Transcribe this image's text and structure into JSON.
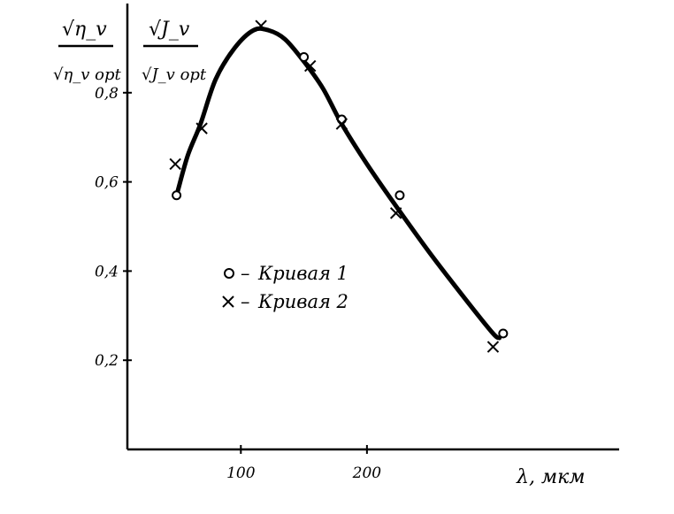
{
  "chart_data": {
    "type": "line",
    "title": "",
    "ylabel_left": {
      "numerator": "√η_v",
      "denominator": "√η_v opt"
    },
    "ylabel_right": {
      "numerator": "√J_v",
      "denominator": "√J_v opt"
    },
    "xlabel": "λ, мкм",
    "xlim": [
      10,
      400
    ],
    "ylim": [
      0.0,
      1.0
    ],
    "x_ticks": [
      {
        "value": 100,
        "label": "100"
      },
      {
        "value": 200,
        "label": "200"
      }
    ],
    "y_ticks": [
      {
        "value": 0.2,
        "label": "0,2"
      },
      {
        "value": 0.4,
        "label": "0,4"
      },
      {
        "value": 0.6,
        "label": "0,6"
      },
      {
        "value": 0.8,
        "label": "0,8"
      }
    ],
    "curve": [
      {
        "x": 50,
        "y": 0.58
      },
      {
        "x": 58,
        "y": 0.66
      },
      {
        "x": 68,
        "y": 0.73
      },
      {
        "x": 80,
        "y": 0.83
      },
      {
        "x": 95,
        "y": 0.9
      },
      {
        "x": 110,
        "y": 0.94
      },
      {
        "x": 122,
        "y": 0.94
      },
      {
        "x": 135,
        "y": 0.92
      },
      {
        "x": 150,
        "y": 0.87
      },
      {
        "x": 165,
        "y": 0.81
      },
      {
        "x": 180,
        "y": 0.73
      },
      {
        "x": 200,
        "y": 0.64
      },
      {
        "x": 222,
        "y": 0.55
      },
      {
        "x": 250,
        "y": 0.44
      },
      {
        "x": 280,
        "y": 0.33
      },
      {
        "x": 300,
        "y": 0.26
      },
      {
        "x": 305,
        "y": 0.25
      }
    ],
    "series": [
      {
        "name": "Кривая 1",
        "marker": "circle",
        "points": [
          {
            "x": 49,
            "y": 0.57
          },
          {
            "x": 150,
            "y": 0.88
          },
          {
            "x": 180,
            "y": 0.74
          },
          {
            "x": 226,
            "y": 0.57
          },
          {
            "x": 308,
            "y": 0.26
          }
        ]
      },
      {
        "name": "Кривая 2",
        "marker": "cross",
        "points": [
          {
            "x": 48,
            "y": 0.64
          },
          {
            "x": 69,
            "y": 0.72
          },
          {
            "x": 116,
            "y": 0.95
          },
          {
            "x": 155,
            "y": 0.86
          },
          {
            "x": 180,
            "y": 0.73
          },
          {
            "x": 223,
            "y": 0.53
          },
          {
            "x": 300,
            "y": 0.23
          }
        ]
      }
    ],
    "legend": [
      {
        "symbol": "o",
        "label": "Кривая 1"
      },
      {
        "symbol": "x",
        "label": "Кривая 2"
      }
    ],
    "legend_position": "center",
    "grid": false
  }
}
